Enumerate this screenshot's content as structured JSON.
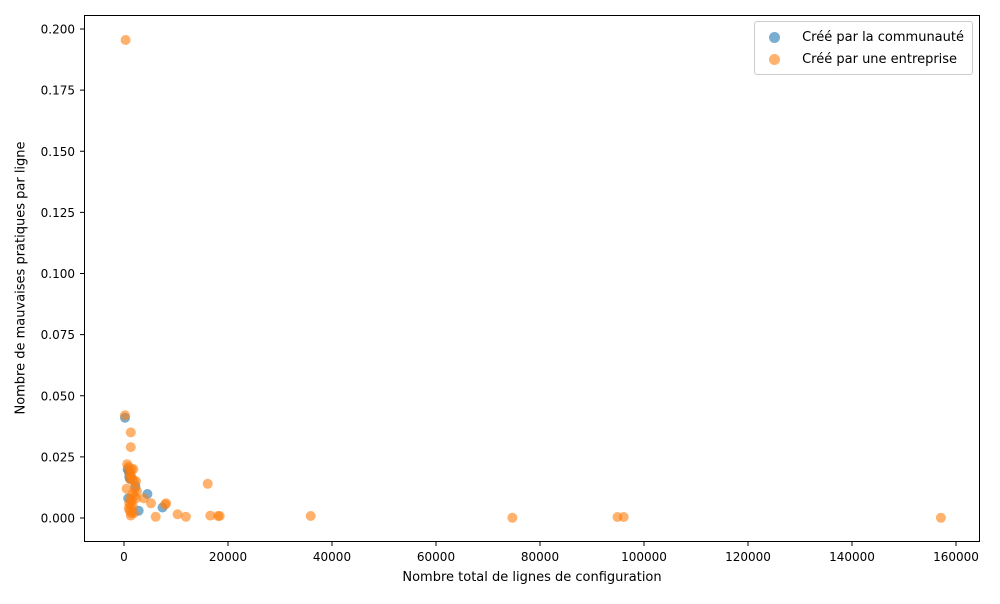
{
  "chart_data": {
    "type": "scatter",
    "title": "",
    "xlabel": "Nombre total de lignes de configuration",
    "ylabel": "Nombre de mauvaises pratiques par ligne",
    "xlim": [
      -7500,
      165000
    ],
    "ylim": [
      -0.0095,
      0.2055
    ],
    "x_ticks": [
      0,
      20000,
      40000,
      60000,
      80000,
      100000,
      120000,
      140000,
      160000
    ],
    "x_tick_labels": [
      "0",
      "20000",
      "40000",
      "60000",
      "80000",
      "100000",
      "120000",
      "140000",
      "160000"
    ],
    "y_ticks": [
      0.0,
      0.025,
      0.05,
      0.075,
      0.1,
      0.125,
      0.15,
      0.175,
      0.2
    ],
    "y_tick_labels": [
      "0.000",
      "0.025",
      "0.050",
      "0.075",
      "0.100",
      "0.125",
      "0.150",
      "0.175",
      "0.200"
    ],
    "grid": false,
    "legend_position": "upper right",
    "series": [
      {
        "name": "Créé par la communauté",
        "color": "#1f77b4",
        "alpha": 0.6,
        "points": [
          [
            200,
            0.041
          ],
          [
            700,
            0.02
          ],
          [
            900,
            0.019
          ],
          [
            1000,
            0.017
          ],
          [
            800,
            0.008
          ],
          [
            1200,
            0.016
          ],
          [
            2200,
            0.013
          ],
          [
            2800,
            0.003
          ],
          [
            4500,
            0.0098
          ],
          [
            7400,
            0.0043
          ]
        ]
      },
      {
        "name": "Créé par une entreprise",
        "color": "#ff7f0e",
        "alpha": 0.6,
        "points": [
          [
            300,
            0.1955
          ],
          [
            200,
            0.042
          ],
          [
            1300,
            0.035
          ],
          [
            1300,
            0.029
          ],
          [
            600,
            0.022
          ],
          [
            900,
            0.021
          ],
          [
            1500,
            0.02
          ],
          [
            1800,
            0.02
          ],
          [
            1000,
            0.019
          ],
          [
            1200,
            0.018
          ],
          [
            1400,
            0.017
          ],
          [
            1100,
            0.016
          ],
          [
            1600,
            0.016
          ],
          [
            1900,
            0.015
          ],
          [
            2300,
            0.015
          ],
          [
            500,
            0.012
          ],
          [
            2100,
            0.012
          ],
          [
            2500,
            0.011
          ],
          [
            1700,
            0.01
          ],
          [
            2000,
            0.009
          ],
          [
            1200,
            0.008
          ],
          [
            1500,
            0.007
          ],
          [
            2300,
            0.008
          ],
          [
            3800,
            0.008
          ],
          [
            1000,
            0.006
          ],
          [
            1300,
            0.005
          ],
          [
            1700,
            0.005
          ],
          [
            900,
            0.004
          ],
          [
            1100,
            0.003
          ],
          [
            1400,
            0.002
          ],
          [
            1900,
            0.002
          ],
          [
            1300,
            0.001
          ],
          [
            5200,
            0.006
          ],
          [
            6100,
            0.0005
          ],
          [
            7900,
            0.0055
          ],
          [
            8100,
            0.006
          ],
          [
            10300,
            0.0015
          ],
          [
            11900,
            0.0005
          ],
          [
            16100,
            0.014
          ],
          [
            16600,
            0.001
          ],
          [
            18100,
            0.0008
          ],
          [
            18400,
            0.0008
          ],
          [
            35900,
            0.0008
          ],
          [
            74700,
            0.0001
          ],
          [
            94900,
            0.0004
          ],
          [
            96100,
            0.0004
          ],
          [
            157100,
            0.0001
          ]
        ]
      }
    ]
  }
}
